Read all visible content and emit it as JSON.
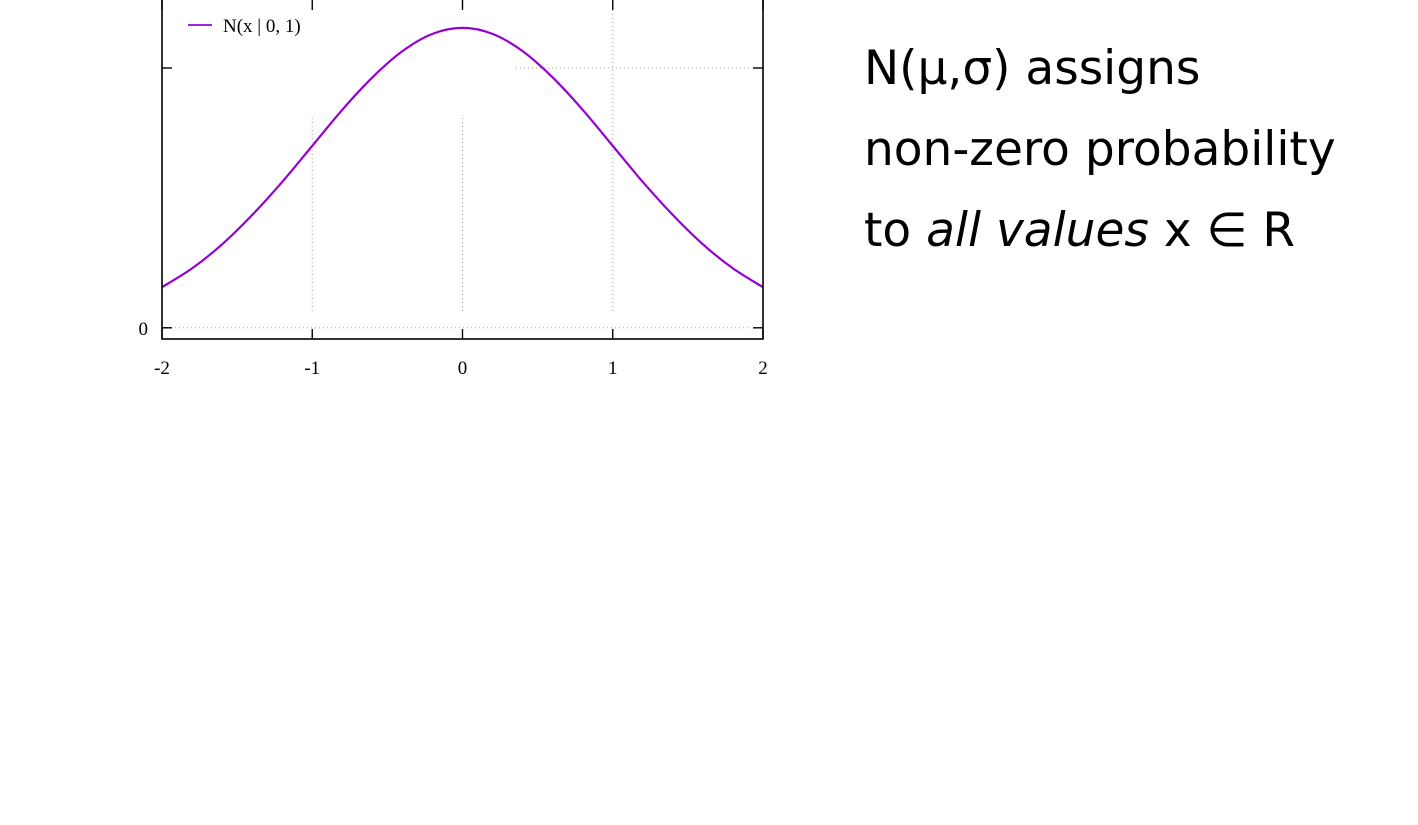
{
  "chart_data": {
    "type": "line",
    "function": "normal_pdf",
    "mu": 0,
    "sigma": 1,
    "xlim": [
      -2,
      2
    ],
    "ylim": [
      -0.0149,
      0.4387
    ],
    "x_ticks": [
      -2,
      -1,
      0,
      1,
      2
    ],
    "x_tick_labels": [
      "-2",
      "-1",
      "0",
      "1",
      "2"
    ],
    "y_ticks": [
      0,
      0.3456
    ],
    "y_tick_labels": [
      "0",
      ""
    ],
    "grid": true,
    "legend_position": "top-left",
    "series": [
      {
        "name": "N(x | 0, 1)",
        "color": "#9400d3",
        "x": [
          -2.0,
          -1.8,
          -1.6,
          -1.4,
          -1.2,
          -1.0,
          -0.8,
          -0.6,
          -0.4,
          -0.2,
          0.0,
          0.2,
          0.4,
          0.6,
          0.8,
          1.0,
          1.2,
          1.4,
          1.6,
          1.8,
          2.0
        ],
        "y": [
          0.054,
          0.079,
          0.111,
          0.15,
          0.194,
          0.242,
          0.29,
          0.333,
          0.368,
          0.391,
          0.399,
          0.391,
          0.368,
          0.333,
          0.29,
          0.242,
          0.194,
          0.15,
          0.111,
          0.079,
          0.054
        ]
      }
    ]
  },
  "statement": {
    "line1": "N(μ,σ) assigns",
    "line2": "non-zero probability",
    "line3_prefix": "to ",
    "line3_emphasis": "all values",
    "line3_suffix": " x ∈ R"
  }
}
